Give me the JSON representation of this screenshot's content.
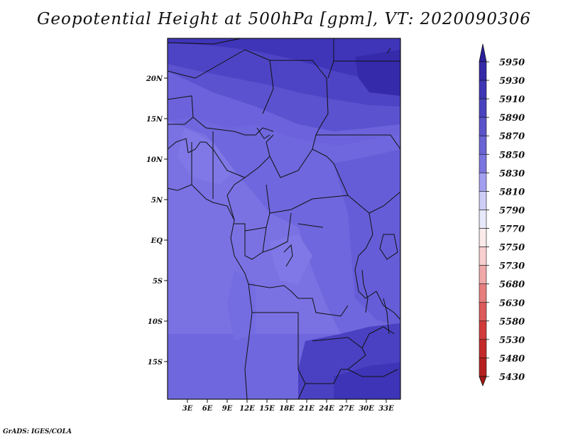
{
  "title": "Geopotential Height at 500hPa [gpm], VT: 2020090306",
  "credit": "GrADS: IGES/COLA",
  "map": {
    "lat_labels": [
      "20N",
      "15N",
      "10N",
      "5N",
      "EQ",
      "5S",
      "10S",
      "15S"
    ],
    "lon_labels": [
      "3E",
      "6E",
      "9E",
      "12E",
      "15E",
      "18E",
      "21E",
      "24E",
      "27E",
      "30E",
      "33E"
    ],
    "region": "Central and West Africa"
  },
  "colorbar": {
    "labels": [
      "5950",
      "5930",
      "5910",
      "5890",
      "5870",
      "5850",
      "5830",
      "5810",
      "5790",
      "5770",
      "5750",
      "5730",
      "5680",
      "5630",
      "5580",
      "5530",
      "5480",
      "5430"
    ],
    "colors": [
      "#2a1f9c",
      "#3529a8",
      "#3d35b4",
      "#4a43bf",
      "#5a53c9",
      "#6a64d4",
      "#7b75e0",
      "#a39ff0",
      "#cdcdf7",
      "#e8e8fb",
      "#fbeaea",
      "#f8cfcf",
      "#f0a8a8",
      "#e67e7e",
      "#dc5a5a",
      "#d23b3b",
      "#c42a2a",
      "#b51f1f",
      "#a51616"
    ]
  }
}
